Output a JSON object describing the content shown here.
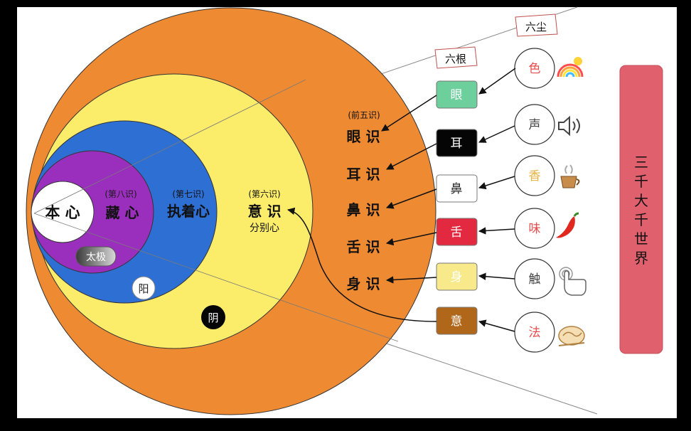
{
  "core": {
    "label": "本 心",
    "color": "#ffffff"
  },
  "layers": [
    {
      "id": "zangxin",
      "sub": "(第八识)",
      "label": "藏 心",
      "color": "#9b2fbd"
    },
    {
      "id": "zhizhuoxin",
      "sub": "(第七识)",
      "label": "执着心",
      "color": "#2e6fd4"
    },
    {
      "id": "yishi",
      "sub": "(第六识)",
      "label": "意 识",
      "note": "分别心",
      "color": "#fbed6a"
    },
    {
      "id": "qianwushi",
      "sub": "(前五识)",
      "color": "#ee8a32"
    }
  ],
  "taiji": "太极",
  "yang": "阳",
  "yin": "阴",
  "five_consciousness": [
    "眼 识",
    "耳 识",
    "鼻 识",
    "舌 识",
    "身 识"
  ],
  "six_roots": {
    "title": "六根",
    "items": [
      {
        "label": "眼",
        "bg": "#6ccf9c",
        "fg": "#ffffff"
      },
      {
        "label": "耳",
        "bg": "#050505",
        "fg": "#ffffff"
      },
      {
        "label": "鼻",
        "bg": "#ffffff",
        "fg": "#222222"
      },
      {
        "label": "舌",
        "bg": "#e3293f",
        "fg": "#ffffff"
      },
      {
        "label": "身",
        "bg": "#f8e98b",
        "fg": "#ffffff"
      },
      {
        "label": "意",
        "bg": "#b0671a",
        "fg": "#ffffff"
      }
    ]
  },
  "six_dusts": {
    "title": "六尘",
    "items": [
      {
        "label": "色",
        "color": "#e84b4b",
        "icon": "rainbow-icon"
      },
      {
        "label": "声",
        "color": "#444444",
        "icon": "speaker-icon"
      },
      {
        "label": "香",
        "color": "#e8b341",
        "icon": "incense-cup-icon"
      },
      {
        "label": "味",
        "color": "#e84b4b",
        "icon": "chili-pepper-icon"
      },
      {
        "label": "触",
        "color": "#444444",
        "icon": "hand-touch-icon"
      },
      {
        "label": "法",
        "color": "#e84b4b",
        "icon": "thinking-icon"
      }
    ]
  },
  "world": {
    "label": "三千大千世界",
    "color": "#e0606e"
  }
}
